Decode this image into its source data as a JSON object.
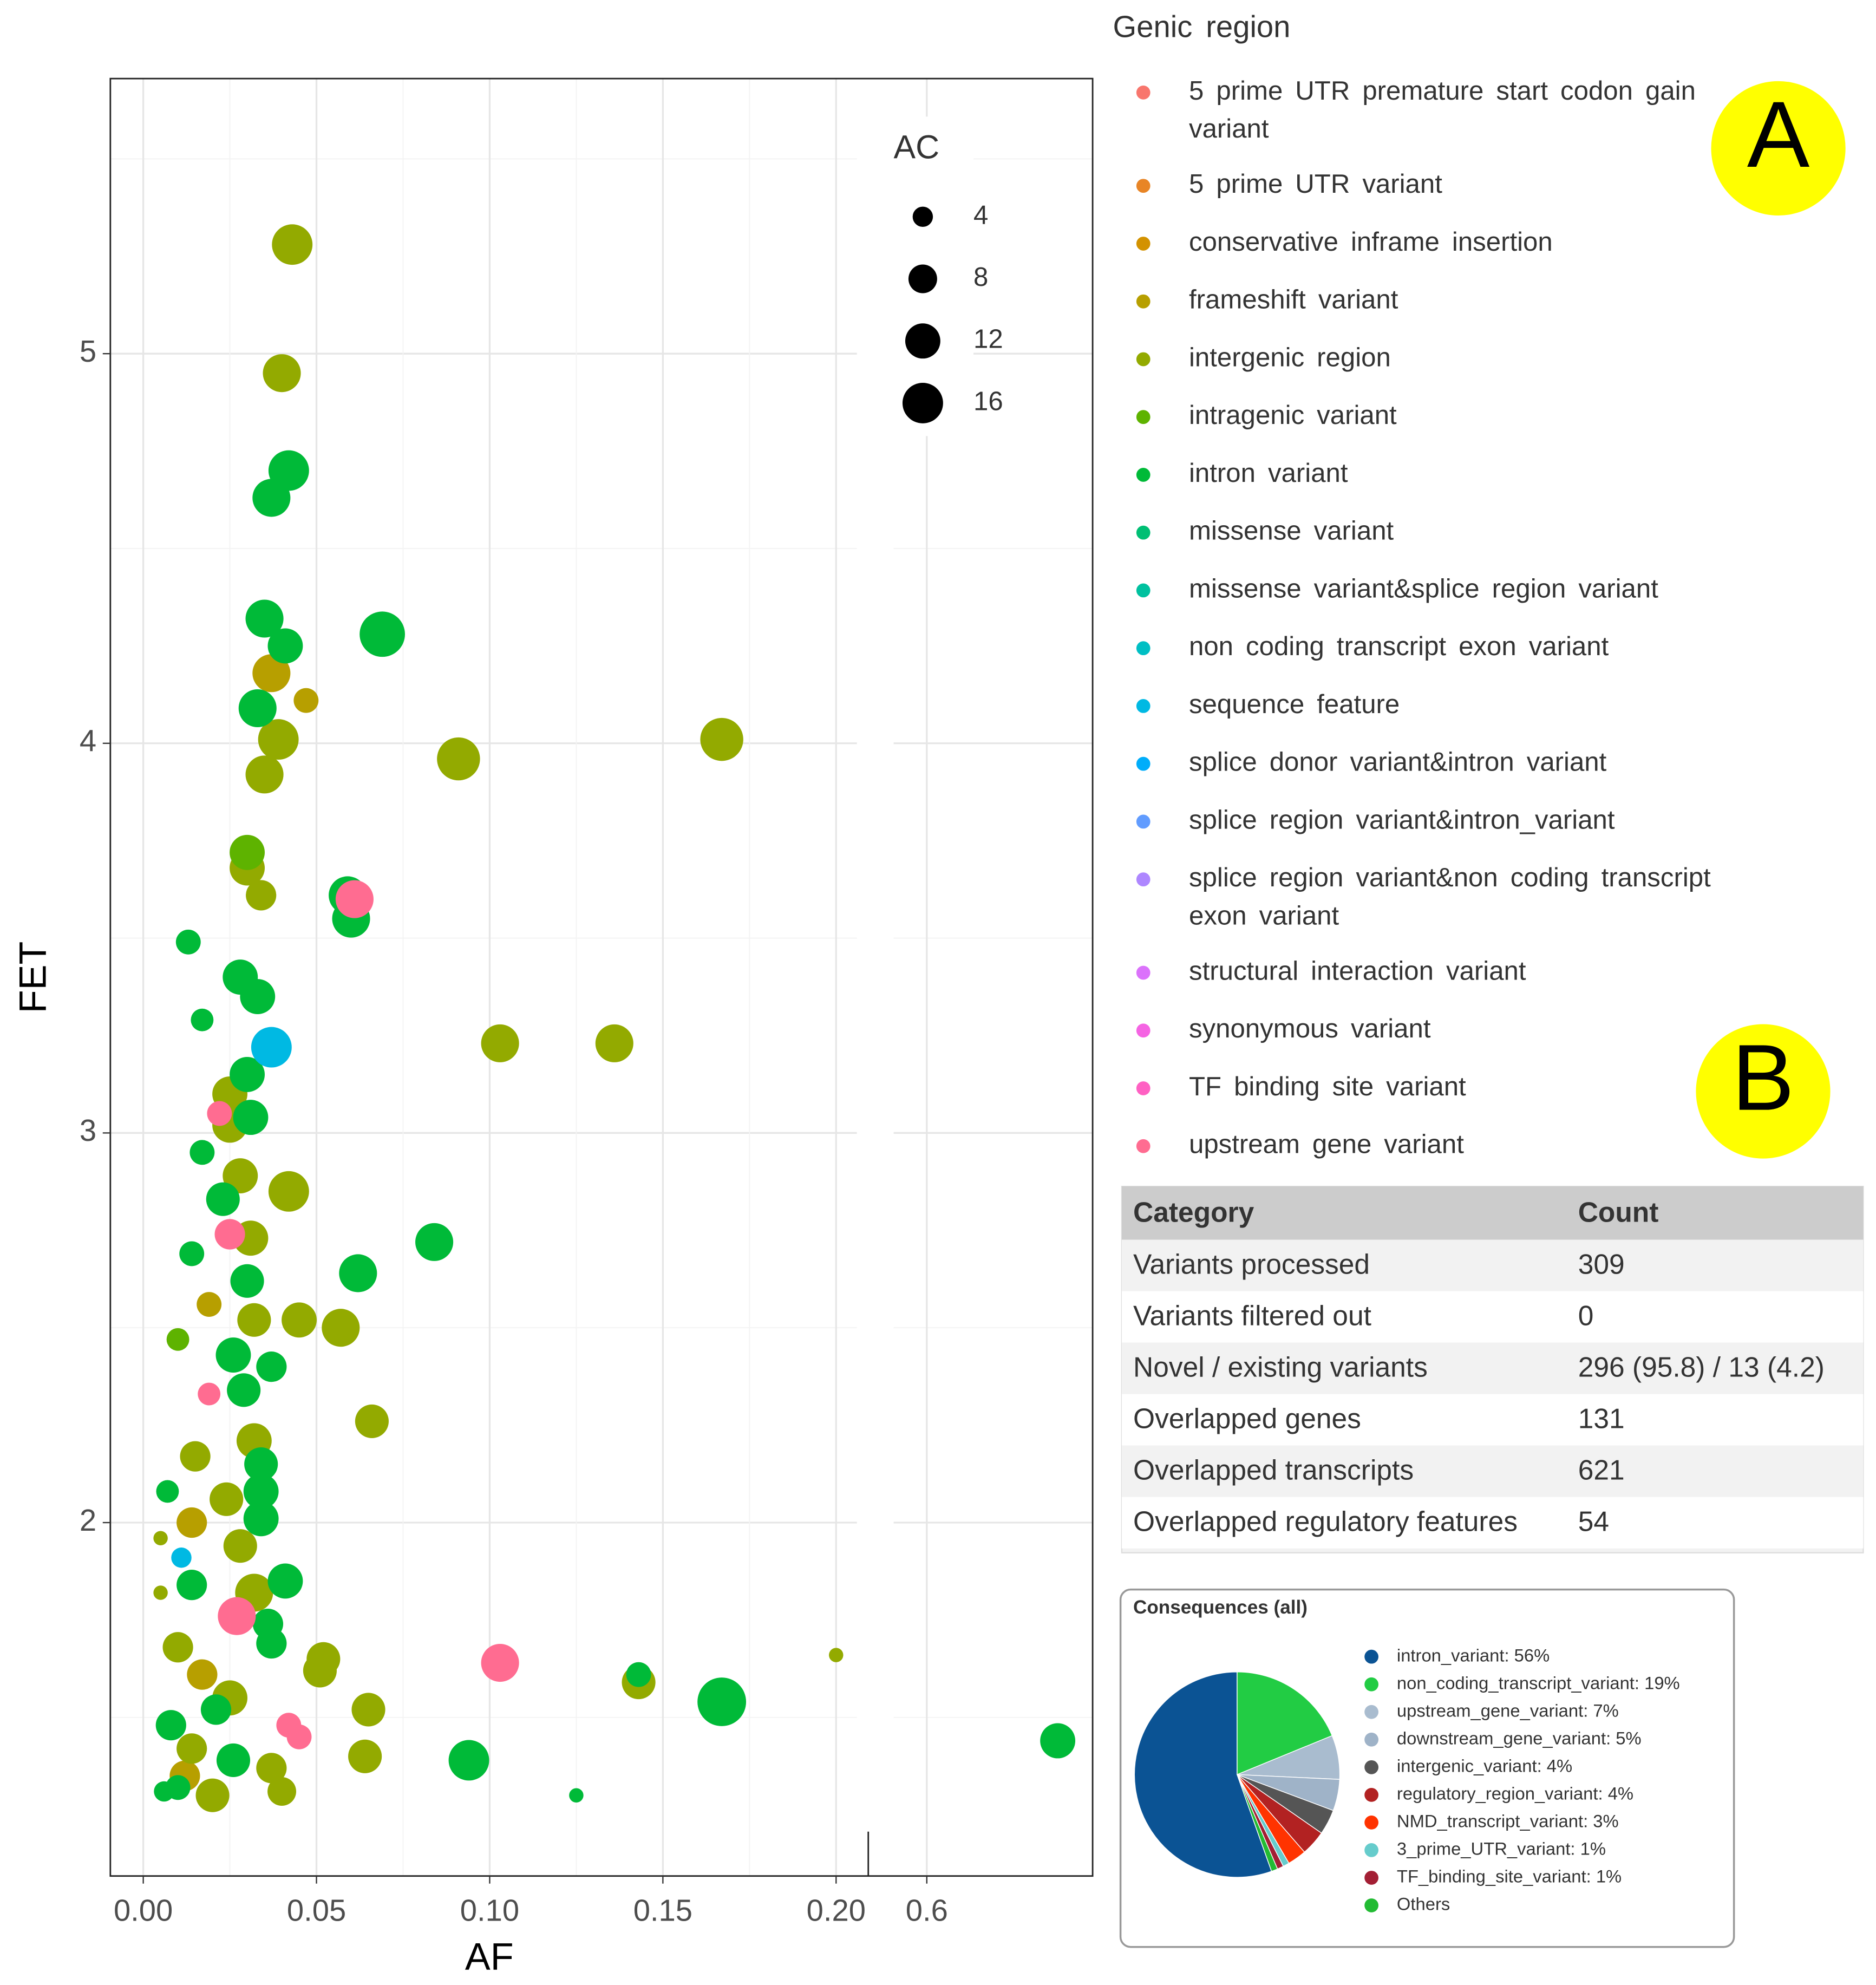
{
  "panel_labels": [
    "A",
    "B"
  ],
  "chart_data": [
    {
      "type": "scatter",
      "xlabel": "AF",
      "ylabel": "FET",
      "x_panels": [
        {
          "xlim": [
            -0.0095,
            0.206
          ],
          "xticks": [
            {
              "value": 0,
              "label": "0.00"
            },
            0.05,
            {
              "value": 0.1,
              "label": "0.10"
            },
            0.15,
            {
              "value": 0.2,
              "label": "0.20"
            }
          ]
        },
        {
          "xlim": [
            0.581,
            0.695
          ],
          "xticks": [
            0.6
          ]
        }
      ],
      "ylim": [
        1.093,
        5.706
      ],
      "yticks": [
        2,
        3,
        4,
        5
      ],
      "grid": true,
      "legend_title": "Genic region",
      "size_title": "AC",
      "size_ticks": [
        4,
        8,
        12,
        16
      ],
      "series": [
        {
          "name": "5 prime UTR premature start codon gain variant",
          "color": "#F8766D",
          "x": [],
          "values": [],
          "sizes": []
        },
        {
          "name": "5 prime UTR variant",
          "color": "#E88526",
          "x": [],
          "values": [],
          "sizes": []
        },
        {
          "name": "conservative inframe insertion",
          "color": "#D39200",
          "x": [],
          "values": [],
          "sizes": []
        },
        {
          "name": "frameshift variant",
          "color": "#B79F00",
          "x": [
            0.037,
            0.047,
            0.019,
            0.017,
            0.014,
            0.012
          ],
          "values": [
            4.18,
            4.11,
            2.56,
            1.61,
            2.0,
            1.35
          ],
          "sizes": [
            14,
            6,
            6,
            9,
            9,
            9
          ]
        },
        {
          "name": "intergenic region",
          "color": "#93AA00",
          "x": [
            0.043,
            0.04,
            0.039,
            0.035,
            0.091,
            0.167,
            0.03,
            0.034,
            0.103,
            0.136,
            0.025,
            0.025,
            0.028,
            0.042,
            0.031,
            0.045,
            0.057,
            0.032,
            0.066,
            0.032,
            0.024,
            0.028,
            0.005,
            0.032,
            0.005,
            0.052,
            0.051,
            0.143,
            0.2,
            0.065,
            0.025,
            0.064,
            0.037,
            0.04,
            0.02,
            0.014,
            0.015,
            0.01
          ],
          "values": [
            5.28,
            4.95,
            4.01,
            3.92,
            3.96,
            4.01,
            3.68,
            3.61,
            3.23,
            3.23,
            3.1,
            3.02,
            2.89,
            2.85,
            2.73,
            2.52,
            2.5,
            2.52,
            2.26,
            2.21,
            2.06,
            1.94,
            1.96,
            1.82,
            1.82,
            1.65,
            1.62,
            1.59,
            1.66,
            1.52,
            1.55,
            1.4,
            1.37,
            1.31,
            1.3,
            1.42,
            2.17,
            1.68
          ],
          "sizes": [
            16,
            14,
            16,
            14,
            18,
            18,
            12,
            9,
            14,
            14,
            12,
            12,
            12,
            16,
            12,
            12,
            14,
            11,
            11,
            12,
            11,
            11,
            2,
            14,
            2,
            11,
            11,
            11,
            2,
            11,
            12,
            11,
            9,
            8,
            11,
            9,
            9,
            9
          ]
        },
        {
          "name": "intragenic variant",
          "color": "#5EB300",
          "x": [
            0.03,
            0.01
          ],
          "values": [
            3.72,
            2.47
          ],
          "sizes": [
            12,
            5
          ]
        },
        {
          "name": "intron variant",
          "color": "#00BA38",
          "x": [
            0.042,
            0.037,
            0.035,
            0.041,
            0.069,
            0.033,
            0.06,
            0.059,
            0.013,
            0.028,
            0.033,
            0.017,
            0.03,
            0.031,
            0.017,
            0.023,
            0.084,
            0.014,
            0.062,
            0.03,
            0.026,
            0.037,
            0.029,
            0.034,
            0.034,
            0.007,
            0.034,
            0.041,
            0.036,
            0.037,
            0.143,
            0.167,
            0.094,
            0.125,
            0.01,
            0.006,
            0.026,
            0.014,
            0.021,
            0.008,
            0.675
          ],
          "values": [
            4.7,
            4.63,
            4.32,
            4.25,
            4.28,
            4.09,
            3.55,
            3.61,
            3.49,
            3.4,
            3.35,
            3.29,
            3.15,
            3.04,
            2.95,
            2.83,
            2.72,
            2.69,
            2.64,
            2.62,
            2.43,
            2.4,
            2.34,
            2.15,
            2.08,
            2.08,
            2.01,
            1.85,
            1.74,
            1.69,
            1.61,
            1.54,
            1.39,
            1.3,
            1.32,
            1.31,
            1.39,
            1.84,
            1.52,
            1.48,
            1.44
          ],
          "sizes": [
            16,
            14,
            14,
            12,
            20,
            14,
            14,
            14,
            6,
            12,
            12,
            5,
            12,
            12,
            6,
            11,
            14,
            6,
            14,
            11,
            12,
            9,
            11,
            11,
            12,
            5,
            12,
            12,
            9,
            9,
            6,
            23,
            16,
            2,
            6,
            4,
            11,
            9,
            9,
            9,
            12
          ]
        },
        {
          "name": "missense variant",
          "color": "#00BF74",
          "x": [],
          "values": [],
          "sizes": []
        },
        {
          "name": "missense variant&splice region variant",
          "color": "#00C19F",
          "x": [],
          "values": [],
          "sizes": []
        },
        {
          "name": "non coding transcript exon variant",
          "color": "#00BFC4",
          "x": [],
          "values": [],
          "sizes": []
        },
        {
          "name": "sequence feature",
          "color": "#00B9E3",
          "x": [
            0.037,
            0.011
          ],
          "values": [
            3.22,
            1.91
          ],
          "sizes": [
            16,
            4
          ]
        },
        {
          "name": "splice donor variant&intron variant",
          "color": "#00ADFA",
          "x": [],
          "values": [],
          "sizes": []
        },
        {
          "name": "splice region variant&intron_variant",
          "color": "#619CFF",
          "x": [],
          "values": [],
          "sizes": []
        },
        {
          "name": "splice region variant&non coding transcript exon variant",
          "color": "#AE87FF",
          "x": [],
          "values": [],
          "sizes": []
        },
        {
          "name": "structural interaction variant",
          "color": "#DB72FB",
          "x": [],
          "values": [],
          "sizes": []
        },
        {
          "name": "synonymous variant",
          "color": "#F564E3",
          "x": [],
          "values": [],
          "sizes": []
        },
        {
          "name": "TF binding site variant",
          "color": "#FF61C3",
          "x": [],
          "values": [],
          "sizes": []
        },
        {
          "name": "upstream gene variant",
          "color": "#FF6C91",
          "x": [
            0.061,
            0.022,
            0.025,
            0.027,
            0.103,
            0.042,
            0.045,
            0.019
          ],
          "values": [
            3.6,
            3.05,
            2.74,
            1.76,
            1.64,
            1.48,
            1.45,
            2.33
          ],
          "sizes": [
            14,
            6,
            9,
            14,
            14,
            6,
            6,
            5
          ]
        }
      ]
    },
    {
      "type": "pie",
      "title": "Consequences (all)",
      "categories": [
        "intron_variant: 56%",
        "non_coding_transcript_variant: 19%",
        "upstream_gene_variant: 7%",
        "downstream_gene_variant: 5%",
        "intergenic_variant: 4%",
        "regulatory_region_variant: 4%",
        "NMD_transcript_variant: 3%",
        "3_prime_UTR_variant: 1%",
        "TF_binding_site_variant: 1%",
        "Others"
      ],
      "values": [
        56,
        19,
        7,
        5,
        4,
        4,
        3,
        1,
        1,
        1
      ],
      "colors": [
        "#0b5394",
        "#22cc44",
        "#a9bccf",
        "#9fb3c8",
        "#555555",
        "#b22222",
        "#ff3300",
        "#66cccc",
        "#a31f34",
        "#22bb33"
      ]
    }
  ],
  "table": {
    "header": [
      "Category",
      "Count"
    ],
    "rows": [
      [
        "Variants processed",
        309
      ],
      [
        "Variants filtered out",
        0
      ],
      [
        "Novel / existing variants",
        "296 (95.8) / 13 (4.2)"
      ],
      [
        "Overlapped genes",
        131
      ],
      [
        "Overlapped transcripts",
        621
      ],
      [
        "Overlapped regulatory features",
        54
      ]
    ]
  }
}
